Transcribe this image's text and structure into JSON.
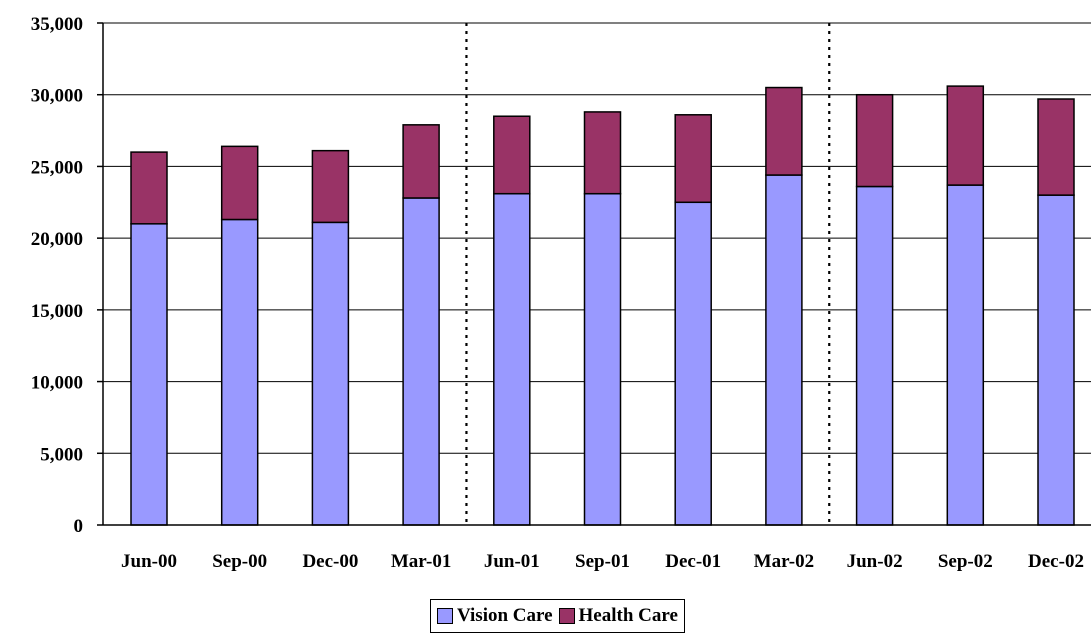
{
  "chart_data": {
    "type": "bar",
    "stacked": true,
    "categories": [
      "Jun-00",
      "Sep-00",
      "Dec-00",
      "Mar-01",
      "Jun-01",
      "Sep-01",
      "Dec-01",
      "Mar-02",
      "Jun-02",
      "Sep-02",
      "Dec-02"
    ],
    "series": [
      {
        "name": "Vision Care",
        "color": "#9999ff",
        "values": [
          21000,
          21300,
          21100,
          22800,
          23100,
          23100,
          22500,
          24400,
          23600,
          23700,
          23000
        ]
      },
      {
        "name": "Health Care",
        "color": "#993366",
        "values": [
          5000,
          5100,
          5000,
          5100,
          5400,
          5700,
          6100,
          6100,
          6400,
          6900,
          6700
        ]
      }
    ],
    "ylim": [
      0,
      35000
    ],
    "yticks": [
      "0",
      "5,000",
      "10,000",
      "15,000",
      "20,000",
      "25,000",
      "30,000",
      "35,000"
    ],
    "ytick_values": [
      0,
      5000,
      10000,
      15000,
      20000,
      25000,
      30000,
      35000
    ],
    "title": "",
    "xlabel": "",
    "ylabel": "",
    "grid": "horizontal",
    "vertical_separators_after": [
      "Mar-01",
      "Mar-02"
    ],
    "legend_position": "bottom-center"
  }
}
